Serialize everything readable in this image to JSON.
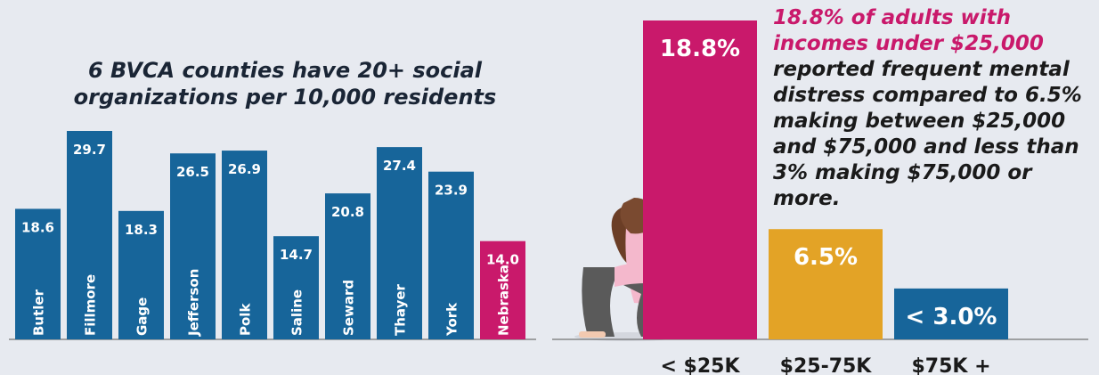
{
  "chart_data": [
    {
      "type": "bar",
      "title": "6 BVCA counties have 20+ social organizations per 10,000 residents",
      "categories": [
        "Butler",
        "Fillmore",
        "Gage",
        "Jefferson",
        "Polk",
        "Saline",
        "Seward",
        "Thayer",
        "York",
        "Nebraska"
      ],
      "values": [
        18.6,
        29.7,
        18.3,
        26.5,
        26.9,
        14.7,
        20.8,
        27.4,
        23.9,
        14.0
      ],
      "value_labels": [
        "18.6",
        "29.7",
        "18.3",
        "26.5",
        "26.9",
        "14.7",
        "20.8",
        "27.4",
        "23.9",
        "14.0"
      ],
      "colors": [
        "#17659a",
        "#17659a",
        "#17659a",
        "#17659a",
        "#17659a",
        "#17659a",
        "#17659a",
        "#17659a",
        "#17659a",
        "#c9196b"
      ]
    },
    {
      "type": "bar",
      "annotation": {
        "highlight": "18.8% of adults with incomes under $25,000",
        "text": "reported frequent mental distress compared to 6.5% making between $25,000 and $75,000 and less than 3% making $75,000 or more."
      },
      "categories": [
        "< $25K",
        "$25-75K",
        "$75K +"
      ],
      "values": [
        18.8,
        6.5,
        3.0
      ],
      "value_labels": [
        "18.8%",
        "6.5%",
        "< 3.0%"
      ],
      "colors": [
        "#c9196b",
        "#e3a326",
        "#17659a"
      ]
    }
  ]
}
